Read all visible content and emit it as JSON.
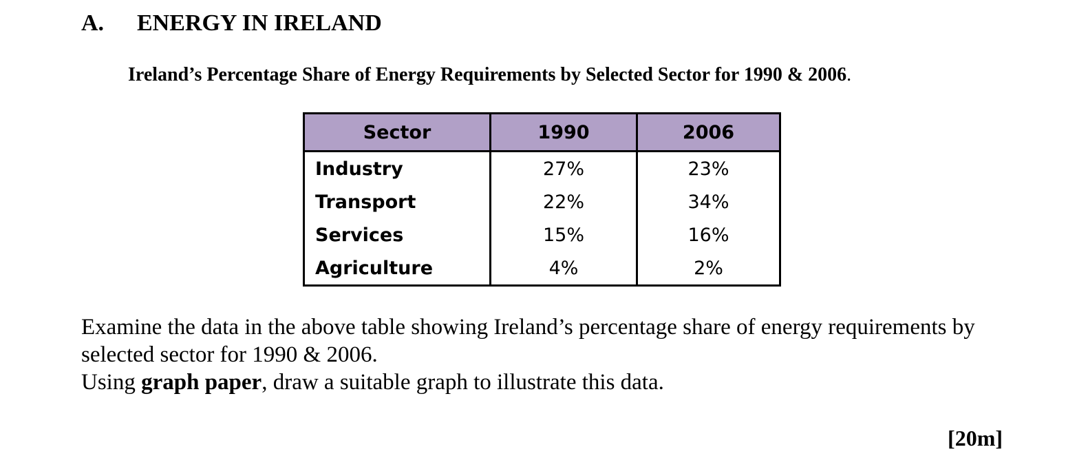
{
  "section": {
    "letter": "A.",
    "title": "ENERGY IN IRELAND"
  },
  "table_title": "Ireland’s Percentage Share of Energy Requirements by Selected Sector for 1990 & 2006",
  "table_title_period": ".",
  "table": {
    "headers": [
      "Sector",
      "1990",
      "2006"
    ],
    "rows": [
      {
        "sector": "Industry",
        "y1990": "27%",
        "y2006": "23%"
      },
      {
        "sector": "Transport",
        "y1990": "22%",
        "y2006": "34%"
      },
      {
        "sector": "Services",
        "y1990": "15%",
        "y2006": "16%"
      },
      {
        "sector": "Agriculture",
        "y1990": "4%",
        "y2006": "2%"
      }
    ],
    "header_color": "#b1a0c7"
  },
  "instructions": {
    "line1": "Examine the data in the above table showing Ireland’s percentage share of energy requirements by selected sector for 1990 & 2006.",
    "line2_prefix": "Using ",
    "line2_bold": "graph paper",
    "line2_suffix": ", draw a suitable graph to illustrate this data."
  },
  "marks": "[20m]"
}
